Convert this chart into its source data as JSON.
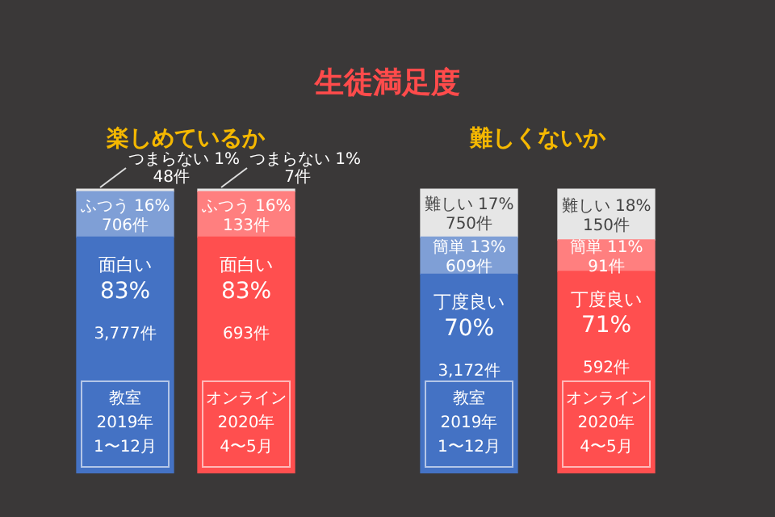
{
  "chart_data": [
    {
      "type": "other",
      "title": "生徒満足度"
    },
    {
      "type": "bar",
      "stacked": true,
      "title": "楽しめているか",
      "categories": [
        "教室\n2019年\n1〜12月",
        "オンライン\n2020年\n4〜5月"
      ],
      "series": [
        {
          "name": "面白い",
          "colors": [
            "#4472c4",
            "#ff4f4f"
          ],
          "values": [
            83,
            83
          ],
          "value_labels": [
            "83%\n3,777件",
            "83%\n693件"
          ]
        },
        {
          "name": "ふつう",
          "colors": [
            "#7f9fd6",
            "#ff7f7f"
          ],
          "values": [
            16,
            16
          ],
          "value_labels": [
            "16%\n706件",
            "16%\n133件"
          ]
        },
        {
          "name": "つまらない",
          "colors": [
            "#e6e6e6",
            "#e6e6e6"
          ],
          "values": [
            1,
            1
          ],
          "value_labels": [
            "1%\n48件",
            "1%\n7件"
          ]
        }
      ]
    },
    {
      "type": "bar",
      "stacked": true,
      "title": "難しくないか",
      "categories": [
        "教室\n2019年\n1〜12月",
        "オンライン\n2020年\n4〜5月"
      ],
      "series": [
        {
          "name": "丁度良い",
          "colors": [
            "#4472c4",
            "#ff4f4f"
          ],
          "values": [
            70,
            71
          ],
          "value_labels": [
            "70%\n3,172件",
            "71%\n592件"
          ]
        },
        {
          "name": "簡単",
          "colors": [
            "#7f9fd6",
            "#ff7f7f"
          ],
          "values": [
            13,
            11
          ],
          "value_labels": [
            "13%\n609件",
            "11%\n91件"
          ]
        },
        {
          "name": "難しい",
          "colors": [
            "#e6e6e6",
            "#e6e6e6"
          ],
          "values": [
            17,
            18
          ],
          "value_labels": [
            "17%\n750件",
            "18%\n150件"
          ]
        }
      ]
    }
  ]
}
